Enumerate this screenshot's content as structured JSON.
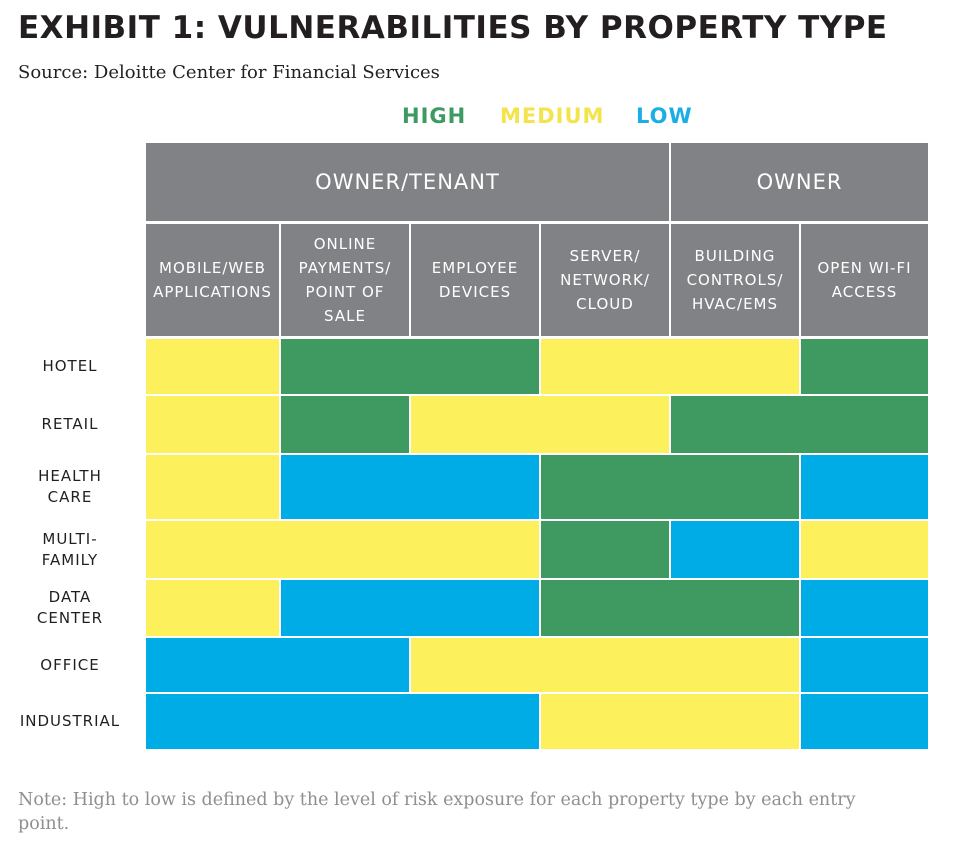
{
  "title": "EXHIBIT 1: VULNERABILITIES BY PROPERTY TYPE",
  "source": "Source: Deloitte Center for Financial Services",
  "note": "Note: High to low is defined by the level of risk exposure for each property type by each entry point.",
  "colors": {
    "high": "#3f9a62",
    "medium": "#fcf05c",
    "low": "#00ace6",
    "header": "#818285",
    "high_text": "#3f9a62",
    "medium_text": "#f2e44a",
    "low_text": "#1aaee6"
  },
  "chart_data": {
    "type": "heatmap",
    "title": "EXHIBIT 1: VULNERABILITIES BY PROPERTY TYPE",
    "legend": [
      {
        "key": "high",
        "label": "HIGH"
      },
      {
        "key": "medium",
        "label": "MEDIUM"
      },
      {
        "key": "low",
        "label": "LOW"
      }
    ],
    "groups": [
      {
        "label": "OWNER/TENANT",
        "span": 4
      },
      {
        "label": "OWNER",
        "span": 2
      }
    ],
    "columns": [
      "MOBILE/WEB\nAPPLICATIONS",
      "ONLINE\nPAYMENTS/\nPOINT OF\nSALE",
      "EMPLOYEE\nDEVICES",
      "SERVER/\nNETWORK/\nCLOUD",
      "BUILDING\nCONTROLS/\nHVAC/EMS",
      "OPEN WI-FI\nACCESS"
    ],
    "rows": [
      "HOTEL",
      "RETAIL",
      "HEALTH\nCARE",
      "MULTI-\nFAMILY",
      "DATA\nCENTER",
      "OFFICE",
      "INDUSTRIAL"
    ],
    "values": [
      [
        "medium",
        "high",
        "high",
        "medium",
        "medium",
        "high"
      ],
      [
        "medium",
        "high",
        "medium",
        "medium",
        "high",
        "high"
      ],
      [
        "medium",
        "low",
        "low",
        "high",
        "high",
        "low"
      ],
      [
        "medium",
        "medium",
        "medium",
        "high",
        "low",
        "medium"
      ],
      [
        "medium",
        "low",
        "low",
        "high",
        "high",
        "low"
      ],
      [
        "low",
        "low",
        "medium",
        "medium",
        "medium",
        "low"
      ],
      [
        "low",
        "low",
        "low",
        "medium",
        "medium",
        "low"
      ]
    ]
  }
}
